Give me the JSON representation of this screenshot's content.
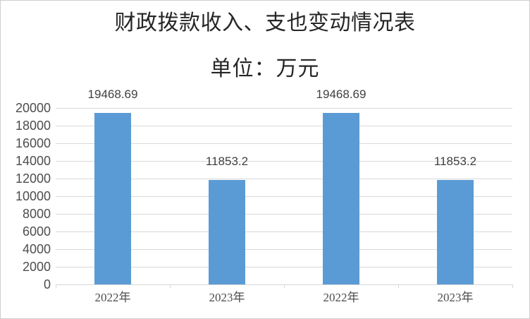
{
  "chart_data": {
    "type": "bar",
    "title": "财政拨款收入、支也变动情况表",
    "subtitle": "单位：万元",
    "categories": [
      "2022年",
      "2023年",
      "2022年",
      "2023年"
    ],
    "values": [
      19468.69,
      11853.2,
      19468.69,
      11853.2
    ],
    "value_labels": [
      "19468.69",
      "11853.2",
      "19468.69",
      "11853.2"
    ],
    "xlabel": "",
    "ylabel": "",
    "ylim": [
      0,
      20000
    ],
    "ytick_interval": 2000,
    "ytick_labels": [
      "0",
      "2000",
      "4000",
      "6000",
      "8000",
      "10000",
      "12000",
      "14000",
      "16000",
      "18000",
      "20000"
    ],
    "grid": true,
    "legend_position": "none",
    "colors": {
      "bar": "#5B9BD5",
      "gridline": "#D9D9D9",
      "axis_line": "#D6D6D6",
      "axis_text": "#4D4D4D",
      "value_label_text": "#3F3F3F",
      "title_text": "#262626",
      "frame_border": "#CFCFCF",
      "background": "#FFFFFF"
    }
  }
}
